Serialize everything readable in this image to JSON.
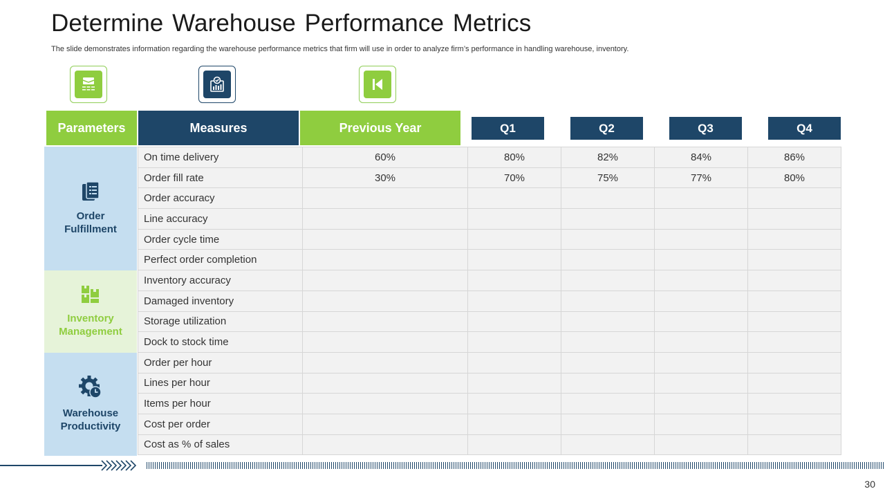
{
  "title": "Determine  Warehouse Performance  Metrics",
  "subtitle": "The slide demonstrates information regarding the warehouse performance metrics that firm will use in order to analyze firm’s performance in handling warehouse, inventory.",
  "icons": [
    "boxes-icon",
    "report-icon",
    "skip-back-icon"
  ],
  "headers": {
    "parameters": "Parameters",
    "measures": "Measures",
    "previous_year": "Previous Year",
    "q1": "Q1",
    "q2": "Q2",
    "q3": "Q3",
    "q4": "Q4"
  },
  "parameters": [
    {
      "line1": "Order",
      "line2": "Fulfillment",
      "icon": "clipboard-icon"
    },
    {
      "line1": "Inventory",
      "line2": "Management",
      "icon": "inventory-boxes-icon"
    },
    {
      "line1": "Warehouse",
      "line2": "Productivity",
      "icon": "gear-clock-icon"
    }
  ],
  "rows": [
    {
      "measure": "On time delivery",
      "prev": "60%",
      "q1": "80%",
      "q2": "82%",
      "q3": "84%",
      "q4": "86%"
    },
    {
      "measure": "Order fill rate",
      "prev": "30%",
      "q1": "70%",
      "q2": "75%",
      "q3": "77%",
      "q4": "80%"
    },
    {
      "measure": "Order accuracy",
      "prev": "",
      "q1": "",
      "q2": "",
      "q3": "",
      "q4": ""
    },
    {
      "measure": "Line accuracy",
      "prev": "",
      "q1": "",
      "q2": "",
      "q3": "",
      "q4": ""
    },
    {
      "measure": "Order cycle time",
      "prev": "",
      "q1": "",
      "q2": "",
      "q3": "",
      "q4": ""
    },
    {
      "measure": "Perfect order completion",
      "prev": "",
      "q1": "",
      "q2": "",
      "q3": "",
      "q4": ""
    },
    {
      "measure": "Inventory  accuracy",
      "prev": "",
      "q1": "",
      "q2": "",
      "q3": "",
      "q4": ""
    },
    {
      "measure": "Damaged inventory",
      "prev": "",
      "q1": "",
      "q2": "",
      "q3": "",
      "q4": ""
    },
    {
      "measure": "Storage utilization",
      "prev": "",
      "q1": "",
      "q2": "",
      "q3": "",
      "q4": ""
    },
    {
      "measure": "Dock to stock time",
      "prev": "",
      "q1": "",
      "q2": "",
      "q3": "",
      "q4": ""
    },
    {
      "measure": "Order per hour",
      "prev": "",
      "q1": "",
      "q2": "",
      "q3": "",
      "q4": ""
    },
    {
      "measure": "Lines per hour",
      "prev": "",
      "q1": "",
      "q2": "",
      "q3": "",
      "q4": ""
    },
    {
      "measure": "Items per hour",
      "prev": "",
      "q1": "",
      "q2": "",
      "q3": "",
      "q4": ""
    },
    {
      "measure": "Cost per order",
      "prev": "",
      "q1": "",
      "q2": "",
      "q3": "",
      "q4": ""
    },
    {
      "measure": "Cost as % of sales",
      "prev": "",
      "q1": "",
      "q2": "",
      "q3": "",
      "q4": ""
    }
  ],
  "page_number": "30",
  "colors": {
    "navy": "#1e4668",
    "green": "#8fcd3f",
    "light_blue": "#c5def0",
    "light_green": "#e6f3d9"
  }
}
